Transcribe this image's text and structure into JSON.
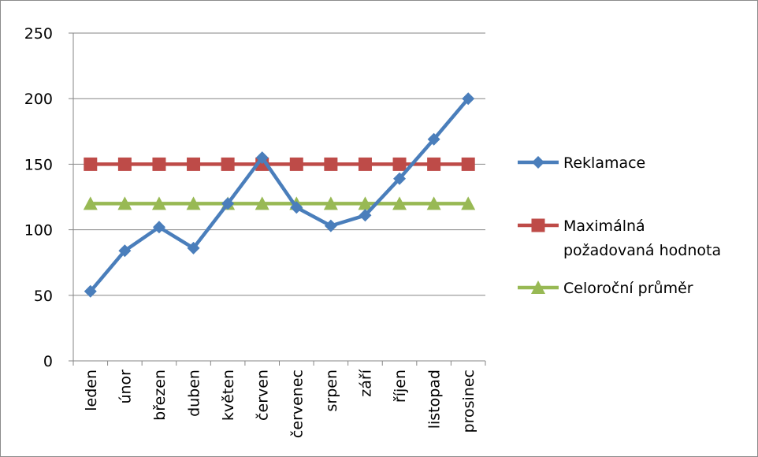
{
  "chart_data": {
    "type": "line",
    "title": "",
    "xlabel": "",
    "ylabel": "",
    "ylim": [
      0,
      250
    ],
    "yticks": [
      0,
      50,
      100,
      150,
      200,
      250
    ],
    "grid": true,
    "legend_position": "right",
    "categories": [
      "leden",
      "únor",
      "březen",
      "duben",
      "květen",
      "červen",
      "červenec",
      "srpen",
      "září",
      "říjen",
      "listopad",
      "prosinec"
    ],
    "series": [
      {
        "name": "Reklamace",
        "color": "#4a7ebb",
        "marker": "diamond",
        "values": [
          53,
          84,
          102,
          86,
          120,
          155,
          117,
          103,
          111,
          139,
          169,
          200
        ]
      },
      {
        "name": "Maximálná požadovaná hodnota",
        "name_lines": [
          "Maximálná",
          "požadovaná hodnota"
        ],
        "color": "#be4b48",
        "marker": "square",
        "values": [
          150,
          150,
          150,
          150,
          150,
          150,
          150,
          150,
          150,
          150,
          150,
          150
        ]
      },
      {
        "name": "Celoroční průměr",
        "color": "#98b954",
        "marker": "triangle",
        "values": [
          120,
          120,
          120,
          120,
          120,
          120,
          120,
          120,
          120,
          120,
          120,
          120
        ]
      }
    ]
  }
}
